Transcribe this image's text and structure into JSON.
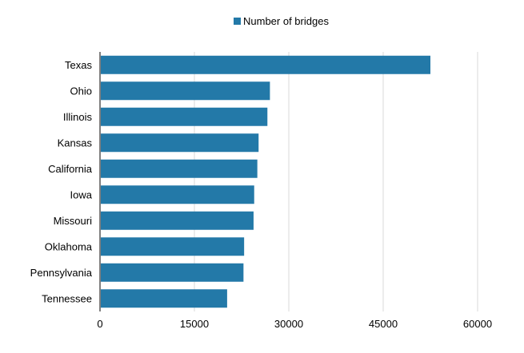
{
  "chart_data": {
    "type": "bar",
    "orientation": "horizontal",
    "categories": [
      "Texas",
      "Ohio",
      "Illinois",
      "Kansas",
      "California",
      "Iowa",
      "Missouri",
      "Oklahoma",
      "Pennsylvania",
      "Tennessee"
    ],
    "series": [
      {
        "name": "Number of bridges",
        "color": "#2379a8",
        "values": [
          52500,
          27000,
          26600,
          25200,
          25000,
          24500,
          24400,
          22900,
          22800,
          20200
        ]
      }
    ],
    "xlim": [
      0,
      60000
    ],
    "xticks": [
      "0",
      "15000",
      "30000",
      "45000",
      "60000"
    ],
    "grid": "vertical",
    "legend_position": "top-center"
  },
  "colors": {
    "bar": "#2379a8",
    "grid": "#d9d9d9"
  }
}
